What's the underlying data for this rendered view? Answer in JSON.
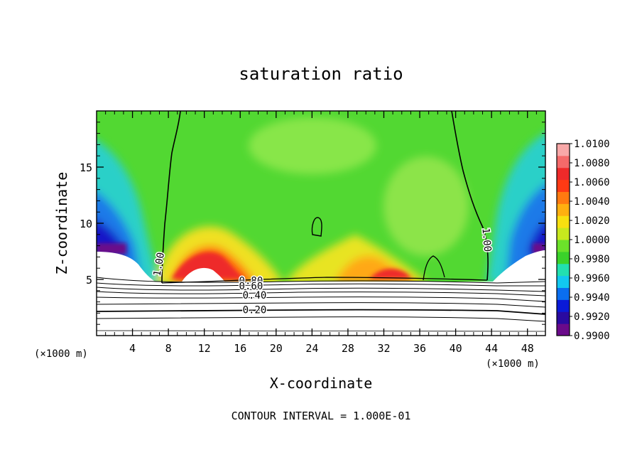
{
  "chart_data": {
    "type": "heatmap",
    "title": "saturation ratio",
    "xlabel": "X-coordinate",
    "ylabel": "Z-coordinate",
    "x_unit_left": "(×1000 m)",
    "x_unit_right": "(×1000 m)",
    "xlim": [
      0,
      50
    ],
    "ylim": [
      0,
      20
    ],
    "x_ticks": [
      4,
      8,
      12,
      16,
      20,
      24,
      28,
      32,
      36,
      40,
      44,
      48
    ],
    "y_ticks": [
      5,
      10,
      15
    ],
    "colorbar": {
      "labels": [
        "1.0100",
        "1.0080",
        "1.0060",
        "1.0040",
        "1.0020",
        "1.0000",
        "0.9980",
        "0.9960",
        "0.9940",
        "0.9920",
        "0.9900"
      ],
      "colors": [
        "#6a0a8a",
        "#2a0aa0",
        "#0a1ad8",
        "#0a6ef0",
        "#12c8f0",
        "#22e0b0",
        "#3ad22a",
        "#6ce22a",
        "#c8e81e",
        "#f8e010",
        "#ffb010",
        "#ff7a10",
        "#ff3a14",
        "#ee2a2a",
        "#f46a6a",
        "#f8a8a8"
      ]
    },
    "contour_labels": [
      {
        "text": "1.00",
        "x": 7.3,
        "z": 6.3,
        "angle": -80
      },
      {
        "text": "1.00",
        "x": 43.1,
        "z": 8.5,
        "angle": 85
      },
      {
        "text": "0.80",
        "x": 17.2,
        "z": 4.6,
        "angle": 0
      },
      {
        "text": "0.60",
        "x": 17.2,
        "z": 4.1,
        "angle": 0
      },
      {
        "text": "0.40",
        "x": 17.6,
        "z": 3.3,
        "angle": 0
      },
      {
        "text": "0.20",
        "x": 17.6,
        "z": 2.0,
        "angle": 0
      }
    ],
    "contour_levels_below": [
      0.1,
      0.2,
      0.3,
      0.4,
      0.5,
      0.6,
      0.7,
      0.8,
      0.9
    ],
    "contour_interval_text": "CONTOUR INTERVAL = 1.000E-01"
  }
}
